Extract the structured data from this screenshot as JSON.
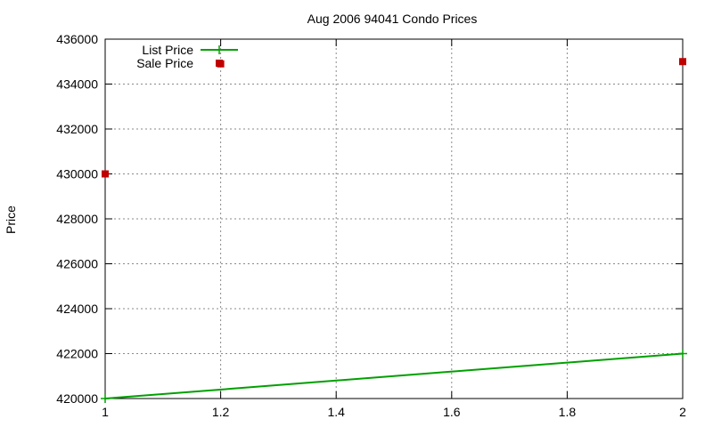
{
  "chart_data": {
    "type": "line",
    "title": "Aug 2006 94041 Condo Prices",
    "xlabel": "",
    "ylabel": "Price",
    "xlim": [
      1,
      2
    ],
    "ylim": [
      420000,
      436000
    ],
    "x_ticks": [
      1,
      1.2,
      1.4,
      1.6,
      1.8,
      2
    ],
    "y_ticks": [
      420000,
      422000,
      424000,
      426000,
      428000,
      430000,
      432000,
      434000,
      436000
    ],
    "grid": true,
    "legend_position": "top-left",
    "series": [
      {
        "name": "List Price",
        "style": "linespoints",
        "marker": "plus",
        "color": "#00a000",
        "points": [
          {
            "x": 1,
            "y": 420000
          },
          {
            "x": 2,
            "y": 422000
          }
        ]
      },
      {
        "name": "Sale Price",
        "style": "points",
        "marker": "square",
        "color": "#c00000",
        "points": [
          {
            "x": 1,
            "y": 430000
          },
          {
            "x": 1.2,
            "y": 434900
          },
          {
            "x": 2,
            "y": 435000
          }
        ]
      }
    ]
  }
}
